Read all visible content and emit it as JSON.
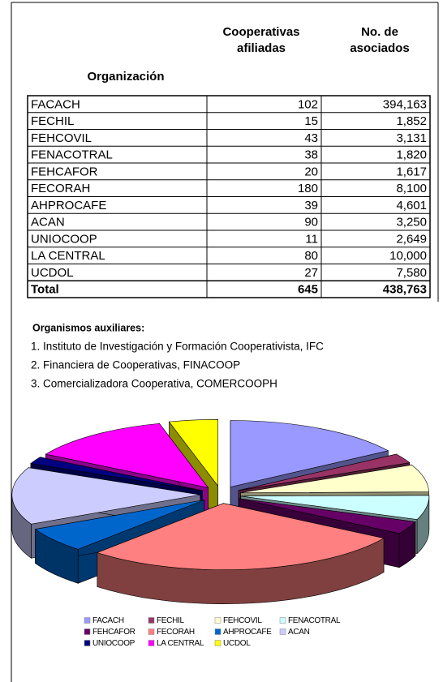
{
  "table": {
    "headers": [
      "Organización",
      "Cooperativas afiliadas",
      "No. de asociados"
    ],
    "rows": [
      [
        "FACACH",
        102,
        "394,163"
      ],
      [
        "FECHIL",
        15,
        "1,852"
      ],
      [
        "FEHCOVIL",
        43,
        "3,131"
      ],
      [
        "FENACOTRAL",
        38,
        "1,820"
      ],
      [
        "FEHCAFOR",
        20,
        "1,617"
      ],
      [
        "FECORAH",
        180,
        "8,100"
      ],
      [
        "AHPROCAFE",
        39,
        "4,601"
      ],
      [
        "ACAN",
        90,
        "3,250"
      ],
      [
        "UNIOCOOP",
        11,
        "2,649"
      ],
      [
        "LA CENTRAL",
        80,
        "10,000"
      ],
      [
        "UCDOL",
        27,
        "7,580"
      ]
    ],
    "total": [
      "Total",
      645,
      "438,763"
    ]
  },
  "notes": {
    "title": "Organismos auxiliares:",
    "items": [
      "1. Instituto de Investigación y Formación Cooperativista, IFC",
      "2. Financiera de Cooperativas, FINACOOP",
      "3. Comercializadora Cooperativa, COMERCOOPH"
    ]
  },
  "chart_data": {
    "type": "pie3d",
    "colors": [
      "#9999ff",
      "#993366",
      "#ffffcc",
      "#ccffff",
      "#660066",
      "#ff8080",
      "#0066cc",
      "#ccccff",
      "#000080",
      "#ff00ff",
      "#ffff00"
    ]
  }
}
